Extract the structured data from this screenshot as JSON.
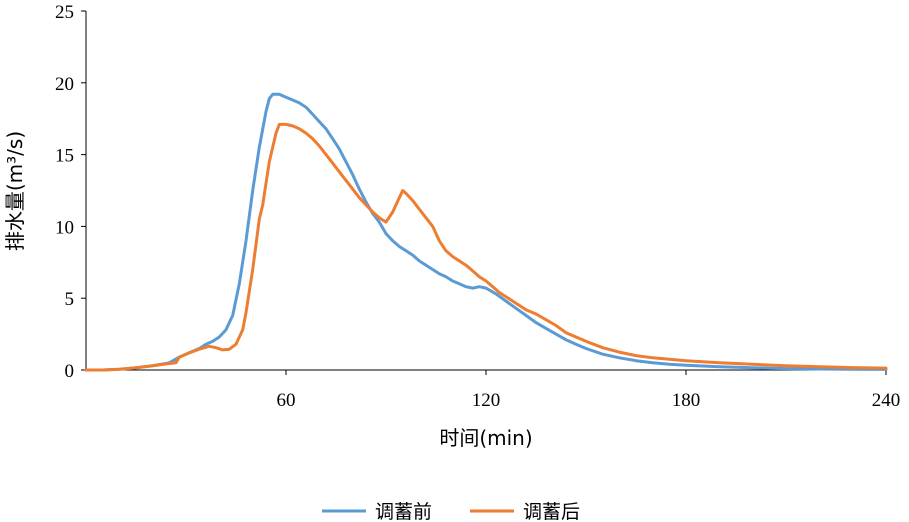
{
  "chart_data": {
    "type": "line",
    "title": "",
    "xlabel": "时间(min)",
    "ylabel": "排水量(m³/s)",
    "xlim": [
      0,
      240
    ],
    "ylim": [
      0,
      25
    ],
    "x_ticks": [
      60,
      120,
      180,
      240
    ],
    "y_ticks": [
      0,
      5,
      10,
      15,
      20,
      25
    ],
    "grid": false,
    "legend_position": "bottom",
    "series": [
      {
        "name": "调蓄前",
        "color": "#5B9BD5",
        "points": [
          [
            0,
            0
          ],
          [
            5,
            0
          ],
          [
            10,
            0.05
          ],
          [
            15,
            0.15
          ],
          [
            20,
            0.3
          ],
          [
            25,
            0.5
          ],
          [
            28,
            0.9
          ],
          [
            31,
            1.2
          ],
          [
            34,
            1.5
          ],
          [
            36,
            1.8
          ],
          [
            38,
            2.0
          ],
          [
            40,
            2.3
          ],
          [
            42,
            2.8
          ],
          [
            44,
            3.8
          ],
          [
            46,
            6.0
          ],
          [
            48,
            9.0
          ],
          [
            50,
            12.5
          ],
          [
            52,
            15.5
          ],
          [
            54,
            18.0
          ],
          [
            55,
            18.9
          ],
          [
            56,
            19.2
          ],
          [
            58,
            19.2
          ],
          [
            60,
            19.0
          ],
          [
            62,
            18.8
          ],
          [
            64,
            18.6
          ],
          [
            66,
            18.3
          ],
          [
            68,
            17.8
          ],
          [
            70,
            17.3
          ],
          [
            72,
            16.8
          ],
          [
            74,
            16.1
          ],
          [
            76,
            15.4
          ],
          [
            78,
            14.5
          ],
          [
            80,
            13.6
          ],
          [
            82,
            12.6
          ],
          [
            84,
            11.7
          ],
          [
            86,
            10.9
          ],
          [
            88,
            10.3
          ],
          [
            90,
            9.5
          ],
          [
            92,
            9.0
          ],
          [
            94,
            8.6
          ],
          [
            96,
            8.3
          ],
          [
            98,
            8.0
          ],
          [
            100,
            7.6
          ],
          [
            102,
            7.3
          ],
          [
            104,
            7.0
          ],
          [
            106,
            6.7
          ],
          [
            108,
            6.5
          ],
          [
            110,
            6.2
          ],
          [
            112,
            6.0
          ],
          [
            114,
            5.8
          ],
          [
            116,
            5.7
          ],
          [
            118,
            5.8
          ],
          [
            120,
            5.7
          ],
          [
            123,
            5.3
          ],
          [
            126,
            4.8
          ],
          [
            129,
            4.3
          ],
          [
            132,
            3.8
          ],
          [
            135,
            3.3
          ],
          [
            138,
            2.9
          ],
          [
            141,
            2.5
          ],
          [
            144,
            2.1
          ],
          [
            147,
            1.8
          ],
          [
            150,
            1.5
          ],
          [
            155,
            1.1
          ],
          [
            160,
            0.85
          ],
          [
            165,
            0.65
          ],
          [
            170,
            0.5
          ],
          [
            175,
            0.4
          ],
          [
            180,
            0.33
          ],
          [
            190,
            0.22
          ],
          [
            200,
            0.15
          ],
          [
            210,
            0.1
          ],
          [
            220,
            0.07
          ],
          [
            230,
            0.05
          ],
          [
            240,
            0.04
          ]
        ]
      },
      {
        "name": "调蓄后",
        "color": "#ED7D31",
        "points": [
          [
            0,
            0
          ],
          [
            5,
            0
          ],
          [
            10,
            0.05
          ],
          [
            15,
            0.15
          ],
          [
            20,
            0.3
          ],
          [
            25,
            0.45
          ],
          [
            27,
            0.5
          ],
          [
            28,
            0.9
          ],
          [
            31,
            1.2
          ],
          [
            34,
            1.45
          ],
          [
            37,
            1.65
          ],
          [
            39,
            1.55
          ],
          [
            41,
            1.4
          ],
          [
            43,
            1.45
          ],
          [
            45,
            1.8
          ],
          [
            47,
            2.8
          ],
          [
            48,
            4.0
          ],
          [
            50,
            7.0
          ],
          [
            52,
            10.5
          ],
          [
            53,
            11.5
          ],
          [
            55,
            14.5
          ],
          [
            57,
            16.5
          ],
          [
            58,
            17.1
          ],
          [
            60,
            17.1
          ],
          [
            62,
            17.0
          ],
          [
            64,
            16.8
          ],
          [
            66,
            16.5
          ],
          [
            68,
            16.1
          ],
          [
            70,
            15.6
          ],
          [
            72,
            15.0
          ],
          [
            74,
            14.4
          ],
          [
            76,
            13.8
          ],
          [
            78,
            13.2
          ],
          [
            80,
            12.6
          ],
          [
            82,
            12.0
          ],
          [
            84,
            11.5
          ],
          [
            86,
            11.0
          ],
          [
            88,
            10.6
          ],
          [
            90,
            10.3
          ],
          [
            92,
            11.0
          ],
          [
            94,
            12.0
          ],
          [
            95,
            12.5
          ],
          [
            96,
            12.3
          ],
          [
            98,
            11.8
          ],
          [
            100,
            11.2
          ],
          [
            102,
            10.6
          ],
          [
            104,
            10.0
          ],
          [
            106,
            9.0
          ],
          [
            108,
            8.3
          ],
          [
            110,
            7.9
          ],
          [
            112,
            7.6
          ],
          [
            114,
            7.3
          ],
          [
            116,
            6.9
          ],
          [
            118,
            6.5
          ],
          [
            120,
            6.2
          ],
          [
            122,
            5.8
          ],
          [
            124,
            5.4
          ],
          [
            126,
            5.1
          ],
          [
            128,
            4.8
          ],
          [
            130,
            4.5
          ],
          [
            132,
            4.2
          ],
          [
            135,
            3.9
          ],
          [
            138,
            3.5
          ],
          [
            141,
            3.1
          ],
          [
            144,
            2.6
          ],
          [
            147,
            2.3
          ],
          [
            150,
            2.0
          ],
          [
            155,
            1.55
          ],
          [
            160,
            1.25
          ],
          [
            165,
            1.0
          ],
          [
            170,
            0.85
          ],
          [
            175,
            0.75
          ],
          [
            180,
            0.65
          ],
          [
            190,
            0.5
          ],
          [
            200,
            0.4
          ],
          [
            210,
            0.3
          ],
          [
            220,
            0.23
          ],
          [
            230,
            0.17
          ],
          [
            240,
            0.13
          ]
        ]
      }
    ]
  }
}
